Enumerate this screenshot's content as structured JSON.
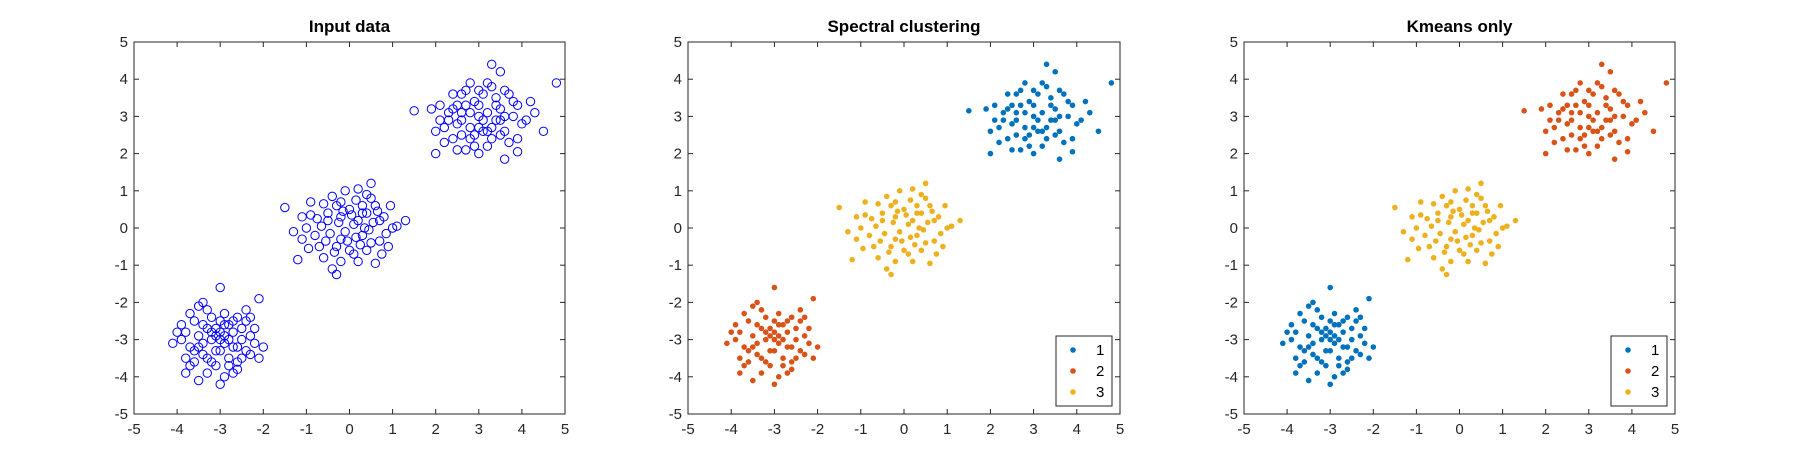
{
  "chart_data": [
    {
      "type": "scatter",
      "title": "Input data",
      "xlim": [
        -5,
        5
      ],
      "ylim": [
        -5,
        5
      ],
      "xticks": [
        -5,
        -4,
        -3,
        -2,
        -1,
        0,
        1,
        2,
        3,
        4,
        5
      ],
      "yticks": [
        -5,
        -4,
        -3,
        -2,
        -1,
        0,
        1,
        2,
        3,
        4,
        5
      ],
      "marker": "open-circle",
      "color": "#0000FF",
      "legend": null,
      "series": [
        {
          "clusters": [
            "A",
            "B",
            "C"
          ]
        }
      ]
    },
    {
      "type": "scatter",
      "title": "Spectral clustering",
      "xlim": [
        -5,
        5
      ],
      "ylim": [
        -5,
        5
      ],
      "xticks": [
        -5,
        -4,
        -3,
        -2,
        -1,
        0,
        1,
        2,
        3,
        4,
        5
      ],
      "yticks": [
        -5,
        -4,
        -3,
        -2,
        -1,
        0,
        1,
        2,
        3,
        4,
        5
      ],
      "marker": "filled-dot",
      "legend": {
        "placement": "bottom-right",
        "entries": [
          "1",
          "2",
          "3"
        ]
      },
      "series": [
        {
          "name": "1",
          "color": "#0072BD",
          "cluster": "C"
        },
        {
          "name": "2",
          "color": "#D95319",
          "cluster": "A"
        },
        {
          "name": "3",
          "color": "#EDB120",
          "cluster": "B"
        }
      ]
    },
    {
      "type": "scatter",
      "title": "Kmeans only",
      "xlim": [
        -5,
        5
      ],
      "ylim": [
        -5,
        5
      ],
      "xticks": [
        -5,
        -4,
        -3,
        -2,
        -1,
        0,
        1,
        2,
        3,
        4,
        5
      ],
      "yticks": [
        -5,
        -4,
        -3,
        -2,
        -1,
        0,
        1,
        2,
        3,
        4,
        5
      ],
      "marker": "filled-dot",
      "legend": {
        "placement": "bottom-right",
        "entries": [
          "1",
          "2",
          "3"
        ]
      },
      "series": [
        {
          "name": "1",
          "color": "#0072BD",
          "cluster": "A"
        },
        {
          "name": "2",
          "color": "#D95319",
          "cluster": "C"
        },
        {
          "name": "3",
          "color": "#EDB120",
          "cluster": "B"
        }
      ]
    }
  ],
  "clusters": {
    "A": [
      [
        -3.1,
        -2.9
      ],
      [
        -3.4,
        -2.6
      ],
      [
        -2.7,
        -3.2
      ],
      [
        -3.6,
        -3.3
      ],
      [
        -2.5,
        -2.7
      ],
      [
        -3.2,
        -3.6
      ],
      [
        -2.9,
        -2.3
      ],
      [
        -3.8,
        -2.8
      ],
      [
        -2.3,
        -3.4
      ],
      [
        -3.0,
        -3.0
      ],
      [
        -3.3,
        -2.2
      ],
      [
        -2.6,
        -3.8
      ],
      [
        -3.7,
        -3.7
      ],
      [
        -2.4,
        -2.5
      ],
      [
        -3.5,
        -2.1
      ],
      [
        -2.8,
        -3.5
      ],
      [
        -3.1,
        -2.7
      ],
      [
        -2.2,
        -3.1
      ],
      [
        -3.9,
        -3.0
      ],
      [
        -3.0,
        -1.6
      ],
      [
        -2.1,
        -1.9
      ],
      [
        -4.0,
        -2.8
      ],
      [
        -3.5,
        -4.1
      ],
      [
        -3.0,
        -4.2
      ],
      [
        -2.6,
        -3.6
      ],
      [
        -2.9,
        -4.0
      ],
      [
        -3.4,
        -3.1
      ],
      [
        -2.7,
        -2.8
      ],
      [
        -3.2,
        -2.4
      ],
      [
        -2.5,
        -3.0
      ],
      [
        -3.6,
        -2.5
      ],
      [
        -3.8,
        -3.5
      ],
      [
        -2.4,
        -3.3
      ],
      [
        -3.3,
        -3.9
      ],
      [
        -2.8,
        -2.6
      ],
      [
        -3.1,
        -3.3
      ],
      [
        -2.9,
        -3.1
      ],
      [
        -3.7,
        -2.3
      ],
      [
        -2.3,
        -2.9
      ],
      [
        -2.0,
        -3.2
      ],
      [
        -4.1,
        -3.1
      ],
      [
        -3.0,
        -2.5
      ],
      [
        -2.6,
        -2.4
      ],
      [
        -3.4,
        -3.4
      ],
      [
        -2.8,
        -3.0
      ],
      [
        -3.5,
        -2.9
      ],
      [
        -2.7,
        -3.9
      ],
      [
        -3.2,
        -3.0
      ],
      [
        -2.4,
        -2.2
      ],
      [
        -3.6,
        -3.6
      ],
      [
        -3.0,
        -2.8
      ],
      [
        -3.3,
        -2.7
      ],
      [
        -2.5,
        -3.5
      ],
      [
        -3.9,
        -2.6
      ],
      [
        -2.9,
        -2.6
      ],
      [
        -3.1,
        -3.7
      ],
      [
        -2.2,
        -2.7
      ],
      [
        -3.7,
        -3.2
      ],
      [
        -2.6,
        -3.2
      ],
      [
        -3.4,
        -2.0
      ],
      [
        -2.1,
        -3.5
      ],
      [
        -3.8,
        -3.9
      ],
      [
        -3.0,
        -3.3
      ],
      [
        -2.7,
        -2.5
      ],
      [
        -3.2,
        -2.8
      ],
      [
        -2.8,
        -3.7
      ],
      [
        -3.5,
        -3.2
      ],
      [
        -2.3,
        -2.4
      ],
      [
        -3.3,
        -3.5
      ],
      [
        -2.9,
        -2.9
      ]
    ],
    "B": [
      [
        0.1,
        0.1
      ],
      [
        -0.2,
        -0.3
      ],
      [
        0.3,
        0.4
      ],
      [
        -0.5,
        0.2
      ],
      [
        0.5,
        -0.4
      ],
      [
        0.0,
        -0.6
      ],
      [
        -0.3,
        0.6
      ],
      [
        0.4,
        0.9
      ],
      [
        0.7,
        0.2
      ],
      [
        -0.8,
        -0.2
      ],
      [
        0.2,
        -0.9
      ],
      [
        -0.1,
        1.0
      ],
      [
        1.0,
        0.0
      ],
      [
        -1.1,
        0.3
      ],
      [
        -0.6,
        -0.8
      ],
      [
        0.6,
        0.6
      ],
      [
        -0.4,
        -1.1
      ],
      [
        0.9,
        -0.5
      ],
      [
        -0.9,
        0.7
      ],
      [
        0.3,
        -0.2
      ],
      [
        -0.2,
        0.3
      ],
      [
        0.0,
        0.5
      ],
      [
        0.2,
        0.2
      ],
      [
        -0.3,
        -0.5
      ],
      [
        0.8,
        0.3
      ],
      [
        -0.7,
        -0.5
      ],
      [
        0.5,
        0.8
      ],
      [
        -0.2,
        -0.9
      ],
      [
        0.4,
        -0.6
      ],
      [
        -0.5,
        0.4
      ],
      [
        1.1,
        0.05
      ],
      [
        -1.3,
        -0.1
      ],
      [
        -1.5,
        0.55
      ],
      [
        -1.2,
        -0.85
      ],
      [
        0.5,
        1.2
      ],
      [
        -0.3,
        -1.25
      ],
      [
        -0.9,
        0.35
      ],
      [
        0.7,
        -0.35
      ],
      [
        0.15,
        0.75
      ],
      [
        -0.45,
        -0.15
      ],
      [
        0.35,
        0.0
      ],
      [
        -0.05,
        -0.35
      ],
      [
        0.65,
        0.45
      ],
      [
        -0.65,
        0.05
      ],
      [
        0.25,
        -0.45
      ],
      [
        -0.15,
        0.45
      ],
      [
        0.85,
        -0.15
      ],
      [
        -0.35,
        -0.65
      ],
      [
        0.05,
        0.35
      ],
      [
        0.45,
        -0.05
      ],
      [
        -0.25,
        0.15
      ],
      [
        0.15,
        -0.25
      ],
      [
        -0.55,
        -0.35
      ],
      [
        0.55,
        0.15
      ],
      [
        -0.1,
        -0.1
      ],
      [
        0.3,
        0.6
      ],
      [
        -0.75,
        0.25
      ],
      [
        0.75,
        -0.7
      ],
      [
        -0.95,
        -0.55
      ],
      [
        0.95,
        0.6
      ],
      [
        0.1,
        -0.7
      ],
      [
        -0.4,
        0.85
      ],
      [
        0.6,
        -0.95
      ],
      [
        -1.0,
        0.0
      ],
      [
        0.2,
        1.05
      ],
      [
        -0.6,
        0.65
      ],
      [
        1.3,
        0.2
      ],
      [
        -1.1,
        -0.3
      ],
      [
        0.4,
        0.4
      ],
      [
        -0.2,
        0.7
      ]
    ],
    "C": [
      [
        3.0,
        3.0
      ],
      [
        2.7,
        3.3
      ],
      [
        3.3,
        2.7
      ],
      [
        2.5,
        2.8
      ],
      [
        3.5,
        3.2
      ],
      [
        2.9,
        2.5
      ],
      [
        3.1,
        3.6
      ],
      [
        2.6,
        3.6
      ],
      [
        3.6,
        2.6
      ],
      [
        2.3,
        3.1
      ],
      [
        3.8,
        3.0
      ],
      [
        3.2,
        2.2
      ],
      [
        2.8,
        3.9
      ],
      [
        3.4,
        3.5
      ],
      [
        2.4,
        2.4
      ],
      [
        3.7,
        2.3
      ],
      [
        2.1,
        3.3
      ],
      [
        4.0,
        2.8
      ],
      [
        3.0,
        2.0
      ],
      [
        2.2,
        2.7
      ],
      [
        3.3,
        4.4
      ],
      [
        3.5,
        4.2
      ],
      [
        4.8,
        3.9
      ],
      [
        4.2,
        3.4
      ],
      [
        4.5,
        2.6
      ],
      [
        1.5,
        3.15
      ],
      [
        2.0,
        2.0
      ],
      [
        3.6,
        1.85
      ],
      [
        3.9,
        2.4
      ],
      [
        2.7,
        2.1
      ],
      [
        3.1,
        2.6
      ],
      [
        2.9,
        3.4
      ],
      [
        3.2,
        3.1
      ],
      [
        2.6,
        2.9
      ],
      [
        3.4,
        2.9
      ],
      [
        2.8,
        2.7
      ],
      [
        3.0,
        3.7
      ],
      [
        3.6,
        3.7
      ],
      [
        2.5,
        3.3
      ],
      [
        3.3,
        2.4
      ],
      [
        2.4,
        3.6
      ],
      [
        3.8,
        3.4
      ],
      [
        2.2,
        2.3
      ],
      [
        4.1,
        2.9
      ],
      [
        1.9,
        3.2
      ],
      [
        3.9,
        2.05
      ],
      [
        2.6,
        2.5
      ],
      [
        3.0,
        3.3
      ],
      [
        3.5,
        2.9
      ],
      [
        2.8,
        3.1
      ],
      [
        3.2,
        3.9
      ],
      [
        2.3,
        2.9
      ],
      [
        3.7,
        3.6
      ],
      [
        2.9,
        2.2
      ],
      [
        4.3,
        3.1
      ],
      [
        2.0,
        2.6
      ],
      [
        3.4,
        3.3
      ],
      [
        2.7,
        3.7
      ],
      [
        3.1,
        2.9
      ],
      [
        3.6,
        3.0
      ],
      [
        2.5,
        2.1
      ],
      [
        3.3,
        3.8
      ],
      [
        2.1,
        2.9
      ],
      [
        3.9,
        3.3
      ],
      [
        2.8,
        2.4
      ],
      [
        3.0,
        2.7
      ],
      [
        3.5,
        2.5
      ],
      [
        2.4,
        3.2
      ],
      [
        3.2,
        2.6
      ],
      [
        2.6,
        3.1
      ]
    ]
  }
}
